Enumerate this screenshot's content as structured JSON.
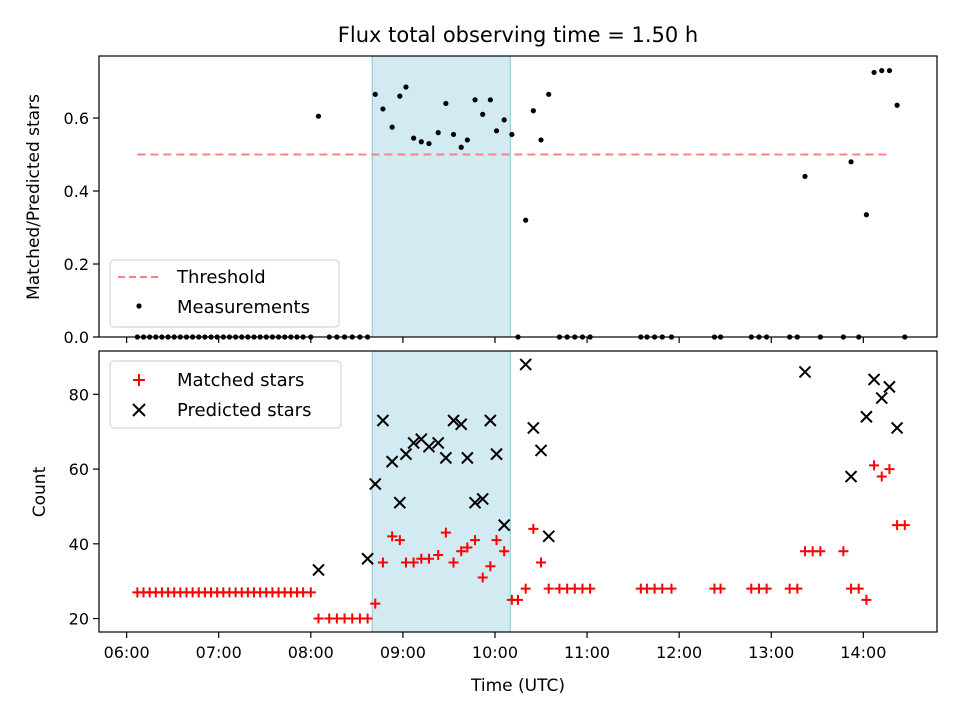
{
  "figure": {
    "title": "Flux total observing time = 1.50 h",
    "xlabel": "Time (UTC)",
    "highlight_color": "#add8e6"
  },
  "chart_data": [
    {
      "type": "scatter",
      "panel": "top",
      "ylabel": "Matched/Predicted stars",
      "xlim": [
        "05:42",
        "14:48"
      ],
      "ylim": [
        0,
        0.77
      ],
      "x_ticks": [
        "06:00",
        "07:00",
        "08:00",
        "09:00",
        "10:00",
        "11:00",
        "12:00",
        "13:00",
        "14:00"
      ],
      "y_ticks": [
        0.0,
        0.2,
        0.4,
        0.6
      ],
      "y_tick_labels": [
        "0.0",
        "0.2",
        "0.4",
        "0.6"
      ],
      "shaded_region": {
        "from": "08:40",
        "to": "10:10"
      },
      "legend": {
        "position": "lower-left",
        "entries": [
          "Threshold",
          "Measurements"
        ]
      },
      "series": [
        {
          "name": "Threshold",
          "style": "dashed-line",
          "color": "#ff8080",
          "points": [
            [
              "06:07",
              0.5
            ],
            [
              "14:18",
              0.5
            ]
          ]
        },
        {
          "name": "Measurements",
          "style": "dot",
          "color": "#000000",
          "points": [
            [
              "06:07",
              0
            ],
            [
              "06:11",
              0
            ],
            [
              "06:15",
              0
            ],
            [
              "06:19",
              0
            ],
            [
              "06:23",
              0
            ],
            [
              "06:27",
              0
            ],
            [
              "06:31",
              0
            ],
            [
              "06:35",
              0
            ],
            [
              "06:39",
              0
            ],
            [
              "06:43",
              0
            ],
            [
              "06:47",
              0
            ],
            [
              "06:51",
              0
            ],
            [
              "06:55",
              0
            ],
            [
              "06:59",
              0
            ],
            [
              "07:03",
              0
            ],
            [
              "07:07",
              0
            ],
            [
              "07:11",
              0
            ],
            [
              "07:15",
              0
            ],
            [
              "07:19",
              0
            ],
            [
              "07:23",
              0
            ],
            [
              "07:27",
              0
            ],
            [
              "07:31",
              0
            ],
            [
              "07:35",
              0
            ],
            [
              "07:39",
              0
            ],
            [
              "07:43",
              0
            ],
            [
              "07:47",
              0
            ],
            [
              "07:51",
              0
            ],
            [
              "07:55",
              0
            ],
            [
              "08:00",
              0
            ],
            [
              "08:05",
              0.605
            ],
            [
              "08:12",
              0
            ],
            [
              "08:17",
              0
            ],
            [
              "08:22",
              0
            ],
            [
              "08:27",
              0
            ],
            [
              "08:32",
              0
            ],
            [
              "08:37",
              0
            ],
            [
              "08:42",
              0.665
            ],
            [
              "08:47",
              0.625
            ],
            [
              "08:53",
              0.575
            ],
            [
              "08:58",
              0.66
            ],
            [
              "09:02",
              0.685
            ],
            [
              "09:07",
              0.545
            ],
            [
              "09:12",
              0.535
            ],
            [
              "09:17",
              0.53
            ],
            [
              "09:23",
              0.56
            ],
            [
              "09:28",
              0.64
            ],
            [
              "09:33",
              0.555
            ],
            [
              "09:38",
              0.52
            ],
            [
              "09:42",
              0.54
            ],
            [
              "09:47",
              0.65
            ],
            [
              "09:52",
              0.61
            ],
            [
              "09:57",
              0.65
            ],
            [
              "10:01",
              0.565
            ],
            [
              "10:06",
              0.595
            ],
            [
              "10:11",
              0.555
            ],
            [
              "10:15",
              0
            ],
            [
              "10:20",
              0.32
            ],
            [
              "10:25",
              0.62
            ],
            [
              "10:30",
              0.54
            ],
            [
              "10:35",
              0.665
            ],
            [
              "10:42",
              0
            ],
            [
              "10:47",
              0
            ],
            [
              "10:52",
              0
            ],
            [
              "10:57",
              0
            ],
            [
              "11:02",
              0
            ],
            [
              "11:35",
              0
            ],
            [
              "11:39",
              0
            ],
            [
              "11:44",
              0
            ],
            [
              "11:49",
              0
            ],
            [
              "11:55",
              0
            ],
            [
              "12:23",
              0
            ],
            [
              "12:27",
              0
            ],
            [
              "12:47",
              0
            ],
            [
              "12:52",
              0
            ],
            [
              "12:57",
              0
            ],
            [
              "13:12",
              0
            ],
            [
              "13:17",
              0
            ],
            [
              "13:22",
              0.44
            ],
            [
              "13:32",
              0
            ],
            [
              "13:47",
              0
            ],
            [
              "13:52",
              0.48
            ],
            [
              "13:57",
              0
            ],
            [
              "14:02",
              0.335
            ],
            [
              "14:07",
              0.725
            ],
            [
              "14:12",
              0.73
            ],
            [
              "14:17",
              0.73
            ],
            [
              "14:22",
              0.635
            ],
            [
              "14:27",
              0
            ]
          ]
        }
      ]
    },
    {
      "type": "scatter",
      "panel": "bottom",
      "ylabel": "Count",
      "xlabel": "Time (UTC)",
      "xlim": [
        "05:42",
        "14:48"
      ],
      "ylim": [
        16.4,
        91.6
      ],
      "x_ticks": [
        "06:00",
        "07:00",
        "08:00",
        "09:00",
        "10:00",
        "11:00",
        "12:00",
        "13:00",
        "14:00"
      ],
      "x_tick_labels": [
        "06:00",
        "07:00",
        "08:00",
        "09:00",
        "10:00",
        "11:00",
        "12:00",
        "13:00",
        "14:00"
      ],
      "y_ticks": [
        20,
        40,
        60,
        80
      ],
      "y_tick_labels": [
        "20",
        "40",
        "60",
        "80"
      ],
      "shaded_region": {
        "from": "08:40",
        "to": "10:10"
      },
      "legend": {
        "position": "upper-left",
        "entries": [
          "Matched stars",
          "Predicted stars"
        ]
      },
      "series": [
        {
          "name": "Matched stars",
          "marker": "plus",
          "color": "#ff0000",
          "points": [
            [
              "06:07",
              27
            ],
            [
              "06:11",
              27
            ],
            [
              "06:15",
              27
            ],
            [
              "06:19",
              27
            ],
            [
              "06:23",
              27
            ],
            [
              "06:27",
              27
            ],
            [
              "06:31",
              27
            ],
            [
              "06:35",
              27
            ],
            [
              "06:39",
              27
            ],
            [
              "06:43",
              27
            ],
            [
              "06:47",
              27
            ],
            [
              "06:51",
              27
            ],
            [
              "06:55",
              27
            ],
            [
              "06:59",
              27
            ],
            [
              "07:03",
              27
            ],
            [
              "07:07",
              27
            ],
            [
              "07:11",
              27
            ],
            [
              "07:15",
              27
            ],
            [
              "07:19",
              27
            ],
            [
              "07:23",
              27
            ],
            [
              "07:27",
              27
            ],
            [
              "07:31",
              27
            ],
            [
              "07:35",
              27
            ],
            [
              "07:39",
              27
            ],
            [
              "07:43",
              27
            ],
            [
              "07:47",
              27
            ],
            [
              "07:51",
              27
            ],
            [
              "07:55",
              27
            ],
            [
              "08:00",
              27
            ],
            [
              "08:05",
              20
            ],
            [
              "08:12",
              20
            ],
            [
              "08:17",
              20
            ],
            [
              "08:22",
              20
            ],
            [
              "08:27",
              20
            ],
            [
              "08:32",
              20
            ],
            [
              "08:37",
              20
            ],
            [
              "08:42",
              24
            ],
            [
              "08:47",
              35
            ],
            [
              "08:53",
              42
            ],
            [
              "08:58",
              41
            ],
            [
              "09:02",
              35
            ],
            [
              "09:07",
              35
            ],
            [
              "09:12",
              36
            ],
            [
              "09:17",
              36
            ],
            [
              "09:23",
              37
            ],
            [
              "09:28",
              43
            ],
            [
              "09:33",
              35
            ],
            [
              "09:38",
              38
            ],
            [
              "09:42",
              39
            ],
            [
              "09:47",
              41
            ],
            [
              "09:52",
              31
            ],
            [
              "09:57",
              34
            ],
            [
              "10:01",
              41
            ],
            [
              "10:06",
              38
            ],
            [
              "10:11",
              25
            ],
            [
              "10:15",
              25
            ],
            [
              "10:20",
              28
            ],
            [
              "10:25",
              44
            ],
            [
              "10:30",
              35
            ],
            [
              "10:35",
              28
            ],
            [
              "10:42",
              28
            ],
            [
              "10:47",
              28
            ],
            [
              "10:52",
              28
            ],
            [
              "10:57",
              28
            ],
            [
              "11:02",
              28
            ],
            [
              "11:35",
              28
            ],
            [
              "11:39",
              28
            ],
            [
              "11:44",
              28
            ],
            [
              "11:49",
              28
            ],
            [
              "11:55",
              28
            ],
            [
              "12:23",
              28
            ],
            [
              "12:27",
              28
            ],
            [
              "12:47",
              28
            ],
            [
              "12:52",
              28
            ],
            [
              "12:57",
              28
            ],
            [
              "13:12",
              28
            ],
            [
              "13:17",
              28
            ],
            [
              "13:22",
              38
            ],
            [
              "13:27",
              38
            ],
            [
              "13:32",
              38
            ],
            [
              "13:47",
              38
            ],
            [
              "13:52",
              28
            ],
            [
              "13:57",
              28
            ],
            [
              "14:02",
              25
            ],
            [
              "14:07",
              61
            ],
            [
              "14:12",
              58
            ],
            [
              "14:17",
              60
            ],
            [
              "14:22",
              45
            ],
            [
              "14:27",
              45
            ]
          ]
        },
        {
          "name": "Predicted stars",
          "marker": "x",
          "color": "#000000",
          "points": [
            [
              "08:05",
              33
            ],
            [
              "08:37",
              36
            ],
            [
              "08:42",
              56
            ],
            [
              "08:47",
              73
            ],
            [
              "08:53",
              62
            ],
            [
              "08:58",
              51
            ],
            [
              "09:02",
              64
            ],
            [
              "09:07",
              67
            ],
            [
              "09:12",
              68
            ],
            [
              "09:17",
              66
            ],
            [
              "09:23",
              67
            ],
            [
              "09:28",
              63
            ],
            [
              "09:33",
              73
            ],
            [
              "09:38",
              72
            ],
            [
              "09:42",
              63
            ],
            [
              "09:47",
              51
            ],
            [
              "09:52",
              52
            ],
            [
              "09:57",
              73
            ],
            [
              "10:01",
              64
            ],
            [
              "10:06",
              45
            ],
            [
              "10:20",
              88
            ],
            [
              "10:25",
              71
            ],
            [
              "10:30",
              65
            ],
            [
              "10:35",
              42
            ],
            [
              "13:22",
              86
            ],
            [
              "13:52",
              58
            ],
            [
              "14:02",
              74
            ],
            [
              "14:07",
              84
            ],
            [
              "14:12",
              79
            ],
            [
              "14:17",
              82
            ],
            [
              "14:22",
              71
            ]
          ]
        }
      ]
    }
  ]
}
